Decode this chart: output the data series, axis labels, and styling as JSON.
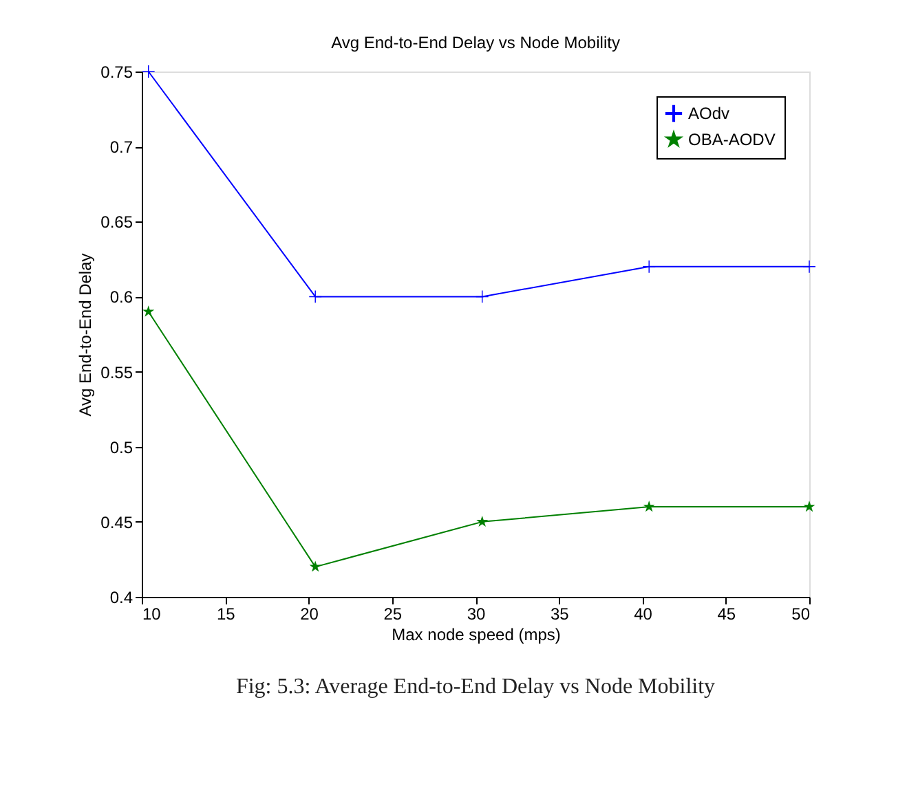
{
  "chart_data": {
    "type": "line",
    "title": "Avg End-to-End Delay vs Node Mobility",
    "xlabel": "Max node speed (mps)",
    "ylabel": "Avg End-to-End Delay",
    "annotations": [
      "Fig: 5.3: Average End-to-End Delay vs Node Mobility"
    ],
    "x": [
      10.4,
      20.4,
      30.4,
      40.4,
      50
    ],
    "series": [
      {
        "name": "AOdv",
        "color": "#0000ff",
        "marker": "cross",
        "values": [
          0.75,
          0.6,
          0.6,
          0.62,
          0.62
        ]
      },
      {
        "name": "OBA-AODV",
        "color": "#008000",
        "marker": "star",
        "values": [
          0.59,
          0.42,
          0.45,
          0.46,
          0.46
        ]
      }
    ],
    "xlim": [
      10,
      50
    ],
    "xticks": [
      10,
      15,
      20,
      25,
      30,
      35,
      40,
      45,
      50
    ],
    "ylim": [
      0.4,
      0.75
    ],
    "yticks": [
      0.4,
      0.45,
      0.5,
      0.55,
      0.6,
      0.65,
      0.7,
      0.75
    ],
    "grid": false,
    "legend": "top right",
    "line_style": "solid"
  }
}
